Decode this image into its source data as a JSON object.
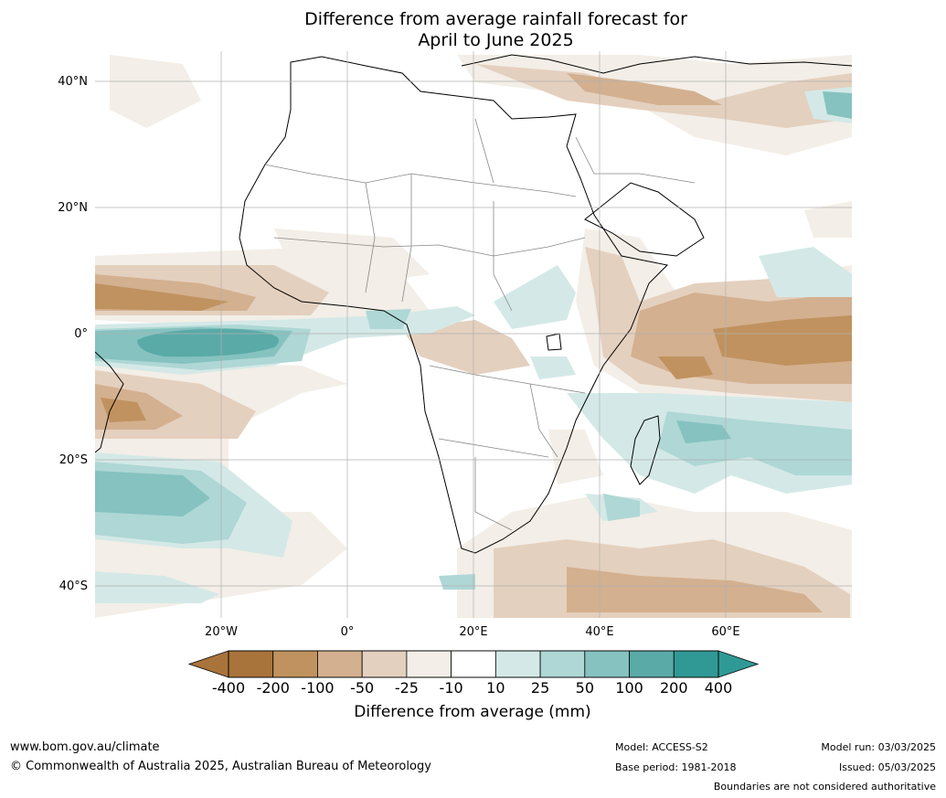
{
  "title_line1": "Difference from average rainfall forecast for",
  "title_line2": "April to June 2025",
  "lat_labels": [
    "40°N",
    "20°N",
    "0°",
    "20°S",
    "40°S"
  ],
  "lon_labels": [
    "20°W",
    "0°",
    "20°E",
    "40°E",
    "60°E"
  ],
  "colorbar": {
    "title": "Difference from average (mm)",
    "ticks": [
      "-400",
      "-200",
      "-100",
      "-50",
      "-25",
      "-10",
      "10",
      "25",
      "50",
      "100",
      "200",
      "400"
    ],
    "colors": [
      "#a9733c",
      "#c0925f",
      "#d3b08f",
      "#e4d0be",
      "#f3eee7",
      "#ffffff",
      "#d4e9e7",
      "#aed7d5",
      "#85c2c0",
      "#5aaaa8",
      "#309995"
    ]
  },
  "footer": {
    "url": "www.bom.gov.au/climate",
    "copyright": "© Commonwealth of Australia 2025, Australian Bureau of Meteorology",
    "model": "Model: ACCESS-S2",
    "base_period": "Base period: 1981-2018",
    "model_run": "Model run: 03/03/2025",
    "issued": "Issued: 05/03/2025",
    "disclaimer": "Boundaries are not considered authoritative"
  }
}
